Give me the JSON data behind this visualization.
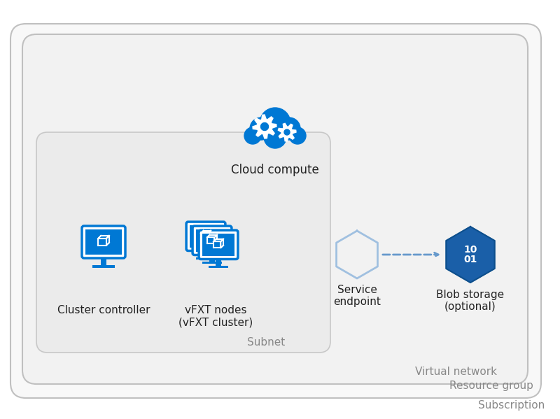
{
  "bg_color": "#ffffff",
  "border_color": "#cccccc",
  "blue_main": "#0078d4",
  "blue_light": "#50a0e0",
  "blue_outline": "#a8c8e8",
  "text_gray": "#888888",
  "text_dark": "#222222",
  "subscription_label": "Subscription",
  "resource_group_label": "Resource group",
  "vnet_label": "Virtual network",
  "subnet_label": "Subnet",
  "controller_label": "Cluster controller",
  "nodes_label": "vFXT nodes\n(vFXT cluster)",
  "endpoint_label": "Service\nendpoint",
  "blob_label": "Blob storage\n(optional)",
  "compute_label": "Cloud compute",
  "blob_hex_color": "#1a5fa8",
  "endpoint_hex_color": "#a0c0e0",
  "dashed_arrow_color": "#6699cc"
}
